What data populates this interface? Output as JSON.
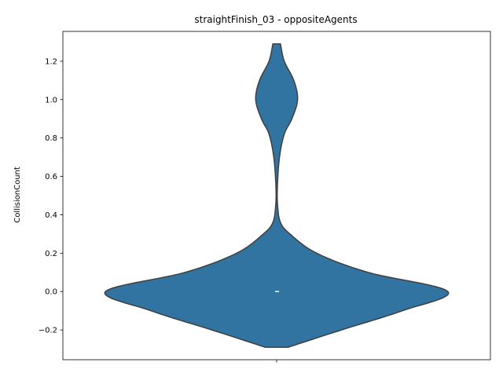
{
  "chart_data": {
    "type": "violin",
    "title": "straightFinish_03 - oppositeAgents",
    "xlabel": "",
    "ylabel": "CollisionCount",
    "ylim": [
      -0.355,
      1.355
    ],
    "yticks": [
      "−0.2",
      "0.0",
      "0.2",
      "0.4",
      "0.6",
      "0.8",
      "1.0",
      "1.2"
    ],
    "ytick_values": [
      -0.2,
      0.0,
      0.2,
      0.4,
      0.6,
      0.8,
      1.0,
      1.2
    ],
    "grid": false,
    "legend": "none",
    "fill_color": "#3274a1",
    "edge_color": "#3f3f3f",
    "median_color": "#ffffff",
    "median": 0.0,
    "density": {
      "y": [
        -0.29,
        -0.2,
        -0.1,
        0.0,
        0.1,
        0.2,
        0.3,
        0.36,
        0.45,
        0.55,
        0.7,
        0.82,
        0.9,
        1.0,
        1.1,
        1.2,
        1.29
      ],
      "half_width": [
        0.06,
        0.34,
        0.66,
        0.9,
        0.48,
        0.21,
        0.07,
        0.02,
        0.005,
        0.004,
        0.015,
        0.04,
        0.08,
        0.11,
        0.09,
        0.04,
        0.02
      ]
    }
  }
}
